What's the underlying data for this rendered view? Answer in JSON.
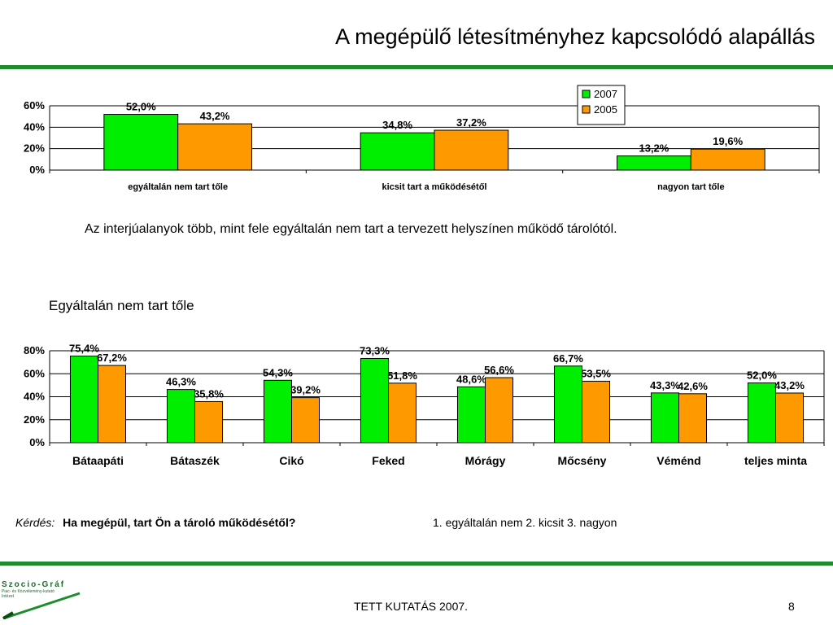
{
  "page": {
    "title": "A megépülő létesítményhez kapcsolódó alapállás",
    "caption": "Az interjúalanyok több, mint fele egyáltalán nem tart a tervezett helyszínen működő tárolótól.",
    "subtitle": "Egyáltalán nem tart tőle",
    "question_label": "Kérdés:",
    "question_text": "Ha megépül, tart Ön a tároló működésétől?",
    "answers": "1. egyáltalán nem  2. kicsit  3. nagyon",
    "footer": "TETT KUTATÁS 2007.",
    "page_number": "8",
    "logo_name": "Szocio-Gráf",
    "logo_sub1": "Piac- és Közvélemény-kutató",
    "logo_sub2": "Intézet",
    "accent_color": "#1e8c2d"
  },
  "chart_data": [
    {
      "type": "bar",
      "categories": [
        "egyáltalán nem tart tőle",
        "kicsit tart a működésétől",
        "nagyon tart tőle"
      ],
      "series": [
        {
          "name": "2007",
          "values": [
            52.0,
            34.8,
            13.2
          ],
          "labels": [
            "52,0%",
            "34,8%",
            "13,2%"
          ],
          "color": "#00ee00"
        },
        {
          "name": "2005",
          "values": [
            43.2,
            37.2,
            19.6
          ],
          "labels": [
            "43,2%",
            "37,2%",
            "19,6%"
          ],
          "color": "#ff9900"
        }
      ],
      "ylim": [
        0,
        60
      ],
      "yticks": [
        0,
        20,
        40,
        60
      ],
      "ytick_labels": [
        "0%",
        "20%",
        "40%",
        "60%"
      ],
      "legend": "top-right",
      "grid": true
    },
    {
      "type": "bar",
      "categories": [
        "Bátaapáti",
        "Bátaszék",
        "Cikó",
        "Feked",
        "Mórágy",
        "Mőcsény",
        "Véménd",
        "teljes minta"
      ],
      "series": [
        {
          "name": "2007",
          "values": [
            75.4,
            46.3,
            54.3,
            73.3,
            48.6,
            66.7,
            43.3,
            52.0
          ],
          "labels": [
            "75,4%",
            "46,3%",
            "54,3%",
            "73,3%",
            "48,6%",
            "66,7%",
            "43,3%",
            "52,0%"
          ],
          "color": "#00ee00"
        },
        {
          "name": "2005",
          "values": [
            67.2,
            35.8,
            39.2,
            51.8,
            56.6,
            53.5,
            42.6,
            43.2
          ],
          "labels": [
            "67,2%",
            "35,8%",
            "39,2%",
            "51,8%",
            "56,6%",
            "53,5%",
            "42,6%",
            "43,2%"
          ],
          "color": "#ff9900"
        }
      ],
      "ylim": [
        0,
        80
      ],
      "yticks": [
        0,
        20,
        40,
        60,
        80
      ],
      "ytick_labels": [
        "0%",
        "20%",
        "40%",
        "60%",
        "80%"
      ],
      "legend": "none",
      "grid": true
    }
  ]
}
